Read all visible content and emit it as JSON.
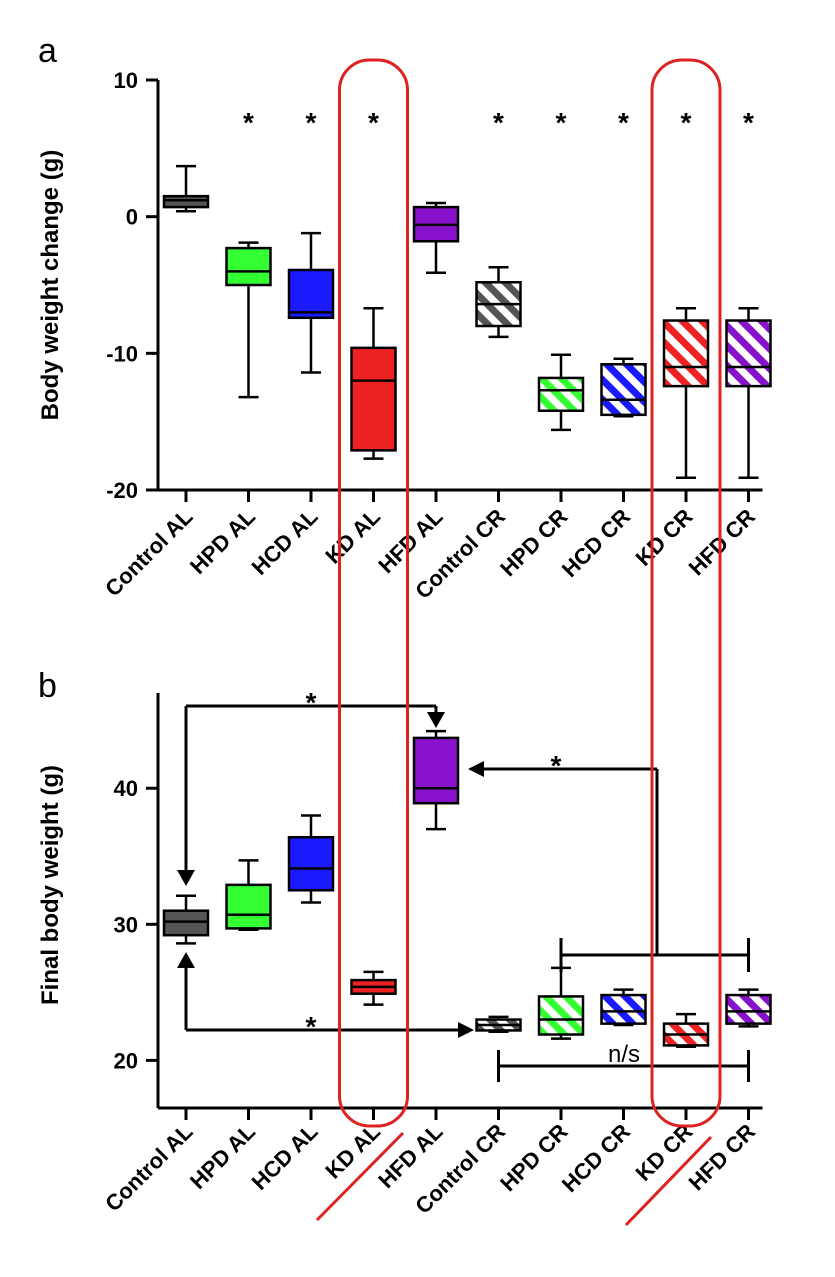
{
  "chart_data": [
    {
      "panel_label": "a",
      "type": "box",
      "ylabel": "Body weight change (g)",
      "xlabel": "",
      "ylim": [
        -20,
        10
      ],
      "yticks": [
        10,
        0,
        -10,
        -20
      ],
      "categories": [
        "Control AL",
        "HPD AL",
        "HCD AL",
        "KD AL",
        "HFD AL",
        "Control CR",
        "HPD CR",
        "HCD CR",
        "KD CR",
        "HFD CR"
      ],
      "boxes": [
        {
          "min": 0.4,
          "q1": 0.7,
          "median": 1.2,
          "q3": 1.5,
          "max": 3.7
        },
        {
          "min": -13.2,
          "q1": -5.0,
          "median": -4.0,
          "q3": -2.3,
          "max": -1.9
        },
        {
          "min": -11.4,
          "q1": -7.4,
          "median": -7.0,
          "q3": -3.9,
          "max": -1.2
        },
        {
          "min": -17.7,
          "q1": -17.1,
          "median": -12.0,
          "q3": -9.6,
          "max": -6.7
        },
        {
          "min": -4.1,
          "q1": -1.8,
          "median": -0.6,
          "q3": 0.7,
          "max": 1.0
        },
        {
          "min": -8.8,
          "q1": -8.0,
          "median": -6.4,
          "q3": -4.8,
          "max": -3.7
        },
        {
          "min": -15.6,
          "q1": -14.2,
          "median": -12.7,
          "q3": -11.8,
          "max": -10.1
        },
        {
          "min": -14.6,
          "q1": -14.5,
          "median": -13.4,
          "q3": -10.8,
          "max": -10.4
        },
        {
          "min": -19.1,
          "q1": -12.4,
          "median": -11.0,
          "q3": -7.6,
          "max": -6.7
        },
        {
          "min": -19.1,
          "q1": -12.4,
          "median": -11.0,
          "q3": -7.6,
          "max": -6.7
        }
      ],
      "significance": [
        "",
        "*",
        "*",
        "*",
        "",
        "*",
        "*",
        "*",
        "*",
        "*"
      ]
    },
    {
      "panel_label": "b",
      "type": "box",
      "ylabel": "Final body weight (g)",
      "xlabel": "",
      "ylim": [
        16.5,
        47
      ],
      "yticks": [
        40,
        30,
        20
      ],
      "categories": [
        "Control AL",
        "HPD AL",
        "HCD AL",
        "KD AL",
        "HFD AL",
        "Control CR",
        "HPD CR",
        "HCD CR",
        "KD CR",
        "HFD CR"
      ],
      "boxes": [
        {
          "min": 28.6,
          "q1": 29.2,
          "median": 30.2,
          "q3": 31.0,
          "max": 32.1
        },
        {
          "min": 29.6,
          "q1": 29.7,
          "median": 30.7,
          "q3": 32.9,
          "max": 34.7
        },
        {
          "min": 31.6,
          "q1": 32.5,
          "median": 34.1,
          "q3": 36.4,
          "max": 38.0
        },
        {
          "min": 24.1,
          "q1": 24.9,
          "median": 25.4,
          "q3": 25.9,
          "max": 26.5
        },
        {
          "min": 37.0,
          "q1": 38.9,
          "median": 40.0,
          "q3": 43.7,
          "max": 44.2
        },
        {
          "min": 22.1,
          "q1": 22.2,
          "median": 22.6,
          "q3": 23.0,
          "max": 23.2
        },
        {
          "min": 21.6,
          "q1": 21.9,
          "median": 23.0,
          "q3": 24.7,
          "max": 26.8
        },
        {
          "min": 22.6,
          "q1": 22.7,
          "median": 23.6,
          "q3": 24.8,
          "max": 25.2
        },
        {
          "min": 21.0,
          "q1": 21.1,
          "median": 21.9,
          "q3": 22.7,
          "max": 23.4
        },
        {
          "min": 22.5,
          "q1": 22.7,
          "median": 23.6,
          "q3": 24.8,
          "max": 25.2
        }
      ],
      "annotations": {
        "star": "*",
        "ns": "n/s"
      }
    }
  ],
  "colors": {
    "Control": "#555555",
    "HPD": "#33ff33",
    "HCD": "#1a1aff",
    "KD": "#ee2222",
    "HFD": "#8811cc",
    "highlight": "#dd2222"
  },
  "hatched_groups": [
    "Control CR",
    "HPD CR",
    "HCD CR",
    "KD CR",
    "HFD CR"
  ]
}
